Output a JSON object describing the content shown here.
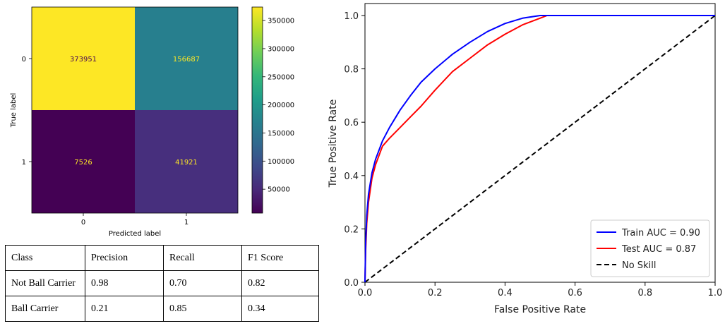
{
  "confusion_matrix": {
    "type": "heatmap",
    "cells": [
      [
        373951,
        156687
      ],
      [
        7526,
        41921
      ]
    ],
    "cell_colors": [
      [
        "#fde725",
        "#277f8e"
      ],
      [
        "#440154",
        "#472f7d"
      ]
    ],
    "text_colors": [
      [
        "#440154",
        "#fde725"
      ],
      [
        "#fde725",
        "#fde725"
      ]
    ],
    "cell_labels": [
      [
        "373951",
        "156687"
      ],
      [
        "7526",
        "41921"
      ]
    ],
    "x_ticks": [
      "0",
      "1"
    ],
    "y_ticks": [
      "0",
      "1"
    ],
    "xlabel": "Predicted label",
    "ylabel": "True label",
    "colorbar": {
      "min": 7526,
      "max": 373951,
      "ticks": [
        50000,
        100000,
        150000,
        200000,
        250000,
        300000,
        350000
      ],
      "tick_labels": [
        "50000",
        "100000",
        "150000",
        "200000",
        "250000",
        "300000",
        "350000"
      ],
      "colormap": [
        "#440154",
        "#482878",
        "#3e4989",
        "#31688e",
        "#26828e",
        "#1f9e89",
        "#35b779",
        "#6ece58",
        "#b5de2b",
        "#fde725"
      ]
    }
  },
  "chart_data": {
    "type": "line",
    "xlabel": "False Positive Rate",
    "ylabel": "True Positive Rate",
    "xlim": [
      0.0,
      1.0
    ],
    "ylim": [
      0.0,
      1.0
    ],
    "x_ticks": [
      "0.0",
      "0.2",
      "0.4",
      "0.6",
      "0.8",
      "1.0"
    ],
    "y_ticks": [
      "0.0",
      "0.2",
      "0.4",
      "0.6",
      "0.8",
      "1.0"
    ],
    "legend_position": "lower-right",
    "series": [
      {
        "name": "Train AUC = 0.90",
        "color": "#0000ff",
        "style": "solid",
        "x": [
          0,
          0.002,
          0.005,
          0.01,
          0.02,
          0.03,
          0.05,
          0.07,
          0.1,
          0.13,
          0.16,
          0.2,
          0.25,
          0.3,
          0.35,
          0.4,
          0.45,
          0.5,
          0.55,
          1.0
        ],
        "y": [
          0,
          0.15,
          0.25,
          0.33,
          0.41,
          0.46,
          0.53,
          0.58,
          0.645,
          0.7,
          0.75,
          0.8,
          0.855,
          0.9,
          0.94,
          0.97,
          0.99,
          1.0,
          1.0,
          1.0
        ]
      },
      {
        "name": "Test AUC = 0.87",
        "color": "#ff0000",
        "style": "solid",
        "x": [
          0,
          0.002,
          0.005,
          0.01,
          0.02,
          0.03,
          0.05,
          0.07,
          0.1,
          0.13,
          0.16,
          0.2,
          0.25,
          0.3,
          0.35,
          0.4,
          0.45,
          0.5,
          0.52,
          0.55,
          1.0
        ],
        "y": [
          0,
          0.12,
          0.22,
          0.3,
          0.39,
          0.44,
          0.51,
          0.54,
          0.58,
          0.62,
          0.66,
          0.72,
          0.79,
          0.84,
          0.89,
          0.93,
          0.965,
          0.99,
          1.0,
          1.0,
          1.0
        ]
      },
      {
        "name": "No Skill",
        "color": "#000000",
        "style": "dashed",
        "x": [
          0,
          1
        ],
        "y": [
          0,
          1
        ]
      }
    ]
  },
  "metrics_table": {
    "header": [
      "Class",
      "Precision",
      "Recall",
      "F1 Score"
    ],
    "rows": [
      [
        "Not Ball Carrier",
        "0.98",
        "0.70",
        "0.82"
      ],
      [
        "Ball Carrier",
        "0.21",
        "0.85",
        "0.34"
      ]
    ]
  }
}
